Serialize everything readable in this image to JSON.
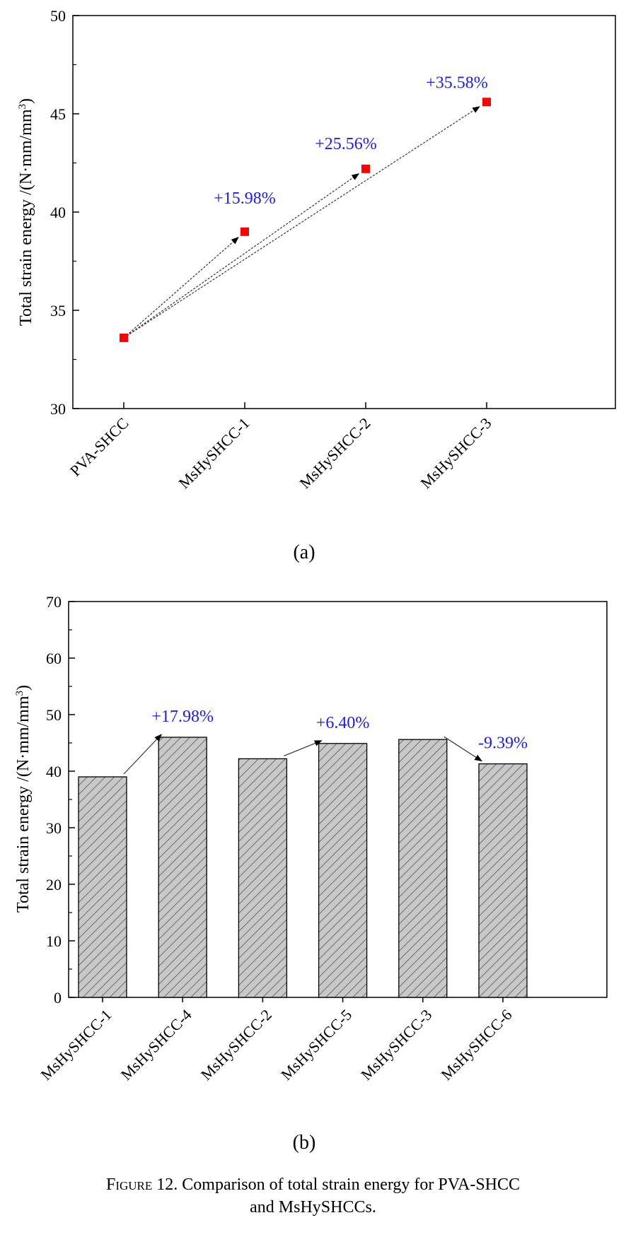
{
  "chart_data": [
    {
      "type": "scatter",
      "categories": [
        "PVA-SHCC",
        "MsHySHCC-1",
        "MsHySHCC-2",
        "MsHySHCC-3"
      ],
      "values": [
        33.6,
        39.0,
        42.2,
        45.6
      ],
      "ylabel": "Total strain energy /(N·mm/mm",
      "ylabel_sup": "3",
      "ylabel_close": ")",
      "ylim": [
        30,
        50
      ],
      "yticks": [
        30,
        35,
        40,
        45,
        50
      ],
      "marker_color": "#ff0000",
      "annotations": [
        {
          "text": "+15.98%",
          "from": "PVA-SHCC",
          "to": "MsHySHCC-1"
        },
        {
          "text": "+25.56%",
          "from": "PVA-SHCC",
          "to": "MsHySHCC-2"
        },
        {
          "text": "+35.58%",
          "from": "PVA-SHCC",
          "to": "MsHySHCC-3"
        }
      ],
      "panel_label": "(a)",
      "grid": false
    },
    {
      "type": "bar",
      "categories": [
        "MsHySHCC-1",
        "MsHySHCC-4",
        "MsHySHCC-2",
        "MsHySHCC-5",
        "MsHySHCC-3",
        "MsHySHCC-6"
      ],
      "values": [
        39.0,
        46.0,
        42.2,
        44.9,
        45.6,
        41.3
      ],
      "ylabel": "Total strain energy /(N·mm/mm",
      "ylabel_sup": "3",
      "ylabel_close": ")",
      "ylim": [
        0,
        70
      ],
      "yticks": [
        0,
        10,
        20,
        30,
        40,
        50,
        60,
        70
      ],
      "bar_fill": "#c8c8c8",
      "hatch": "diagonal",
      "annotations": [
        {
          "text": "+17.98%",
          "from": "MsHySHCC-1",
          "to": "MsHySHCC-4"
        },
        {
          "text": "+6.40%",
          "from": "MsHySHCC-2",
          "to": "MsHySHCC-5"
        },
        {
          "text": "-9.39%",
          "from": "MsHySHCC-3",
          "to": "MsHySHCC-6"
        }
      ],
      "panel_label": "(b)",
      "grid": false
    }
  ],
  "caption": {
    "figure_label": "Figure 12.",
    "text_line1": " Comparison of total strain energy for PVA-SHCC",
    "text_line2": "and MsHySHCCs."
  },
  "colors": {
    "annotation": "#1a1aff",
    "marker": "#ff0000",
    "bar": "#c8c8c8"
  }
}
